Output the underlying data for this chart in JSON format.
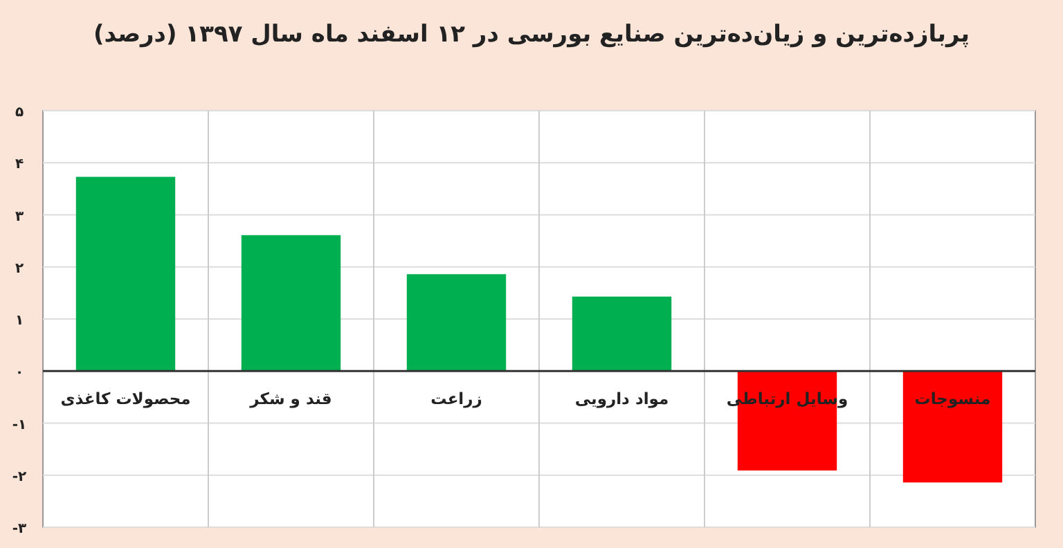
{
  "chart_data": {
    "type": "bar",
    "title": "پربازده‌ترین و زیان‌ده‌ترین صنایع بورسی در ۱۲ اسفند ماه سال ۱۳۹۷ (درصد)",
    "categories": [
      "محصولات کاغذی",
      "قند و شکر",
      "زراعت",
      "مواد دارویی",
      "وسایل ارتباطی",
      "منسوجات"
    ],
    "values": [
      3.73,
      2.61,
      1.86,
      1.43,
      -1.91,
      -2.14
    ],
    "colors": [
      "#00b050",
      "#00b050",
      "#00b050",
      "#00b050",
      "#ff0000",
      "#ff0000"
    ],
    "ylim": [
      -3,
      5
    ],
    "yticks": [
      {
        "value": -3,
        "label": "-۳"
      },
      {
        "value": -2,
        "label": "-۲"
      },
      {
        "value": -1,
        "label": "-۱"
      },
      {
        "value": 0,
        "label": "۰"
      },
      {
        "value": 1,
        "label": "۱"
      },
      {
        "value": 2,
        "label": "۲"
      },
      {
        "value": 3,
        "label": "۳"
      },
      {
        "value": 4,
        "label": "۴"
      },
      {
        "value": 5,
        "label": "۵"
      }
    ],
    "grid": true
  }
}
